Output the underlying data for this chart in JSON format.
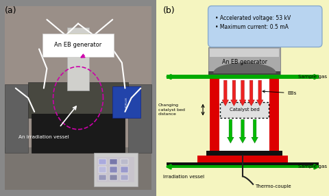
{
  "panel_a_label": "(a)",
  "panel_b_label": "(b)",
  "bg_color_b": "#f5f5c0",
  "info_box_text": "• Accelerated voltage: 53 kV\n• Maximum current: 0.5 mA",
  "info_box_color": "#b8d4f0",
  "eb_generator_label": "An EB generator",
  "sample_gas_top": "Sample gas",
  "sample_gas_bottom": "Sample gas",
  "catalyst_bed_label": "Catalyst bed",
  "ebs_label": "EBs",
  "changing_label": "Changing\ncatalyst bed\ndistance",
  "irradiation_vessel_label": "Irradiation vessel",
  "thermo_couple_label": "Thermo-couple",
  "red_color": "#dd0000",
  "green_color": "#00aa00",
  "arrow_green": "#00bb00",
  "arrow_red": "#ee2222",
  "panel_a_annotation1": "An EB generator",
  "panel_a_annotation2": "An irradiation vessel",
  "magenta_color": "#cc00aa",
  "photo_bg": "#9a9090",
  "photo_mid": "#787070",
  "device_color": "#404040",
  "device_top_color": "#c0b898",
  "screen_color": "#aaaacc"
}
